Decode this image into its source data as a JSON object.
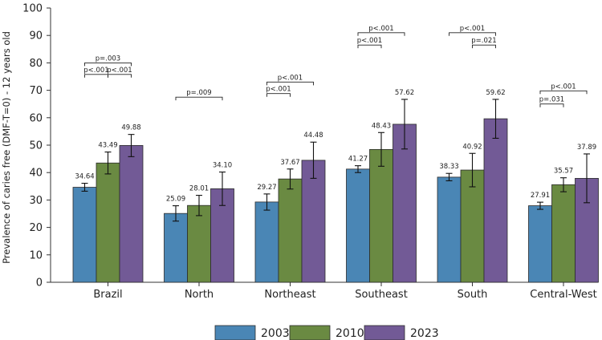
{
  "chart_data": {
    "type": "bar",
    "title": "",
    "xlabel": "",
    "ylabel": "Prevalence of caries free (DMF-T=0) - 12 years old",
    "ylim": [
      0,
      100
    ],
    "yticks": [
      0,
      10,
      20,
      30,
      40,
      50,
      60,
      70,
      80,
      90,
      100
    ],
    "categories": [
      "Brazil",
      "North",
      "Northeast",
      "Southeast",
      "South",
      "Central-West"
    ],
    "series": [
      {
        "name": "2003",
        "color": "#4a86b5",
        "values": [
          34.64,
          25.09,
          29.27,
          41.27,
          38.33,
          27.91
        ],
        "value_labels": [
          "34.64",
          "25.09",
          "29.27",
          "41.27",
          "38.33",
          "27.91"
        ],
        "ci_low": [
          33.2,
          22.3,
          26.3,
          40.0,
          37.0,
          26.6
        ],
        "ci_high": [
          36.1,
          27.9,
          32.2,
          42.5,
          39.7,
          29.2
        ]
      },
      {
        "name": "2010",
        "color": "#6a8a42",
        "values": [
          43.49,
          28.01,
          37.67,
          48.43,
          40.92,
          35.57
        ],
        "value_labels": [
          "43.49",
          "28.01",
          "37.67",
          "48.43",
          "40.92",
          "35.57"
        ],
        "ci_low": [
          39.5,
          24.3,
          34.0,
          42.3,
          34.8,
          33.0
        ],
        "ci_high": [
          47.5,
          31.7,
          41.3,
          54.6,
          47.0,
          38.1
        ]
      },
      {
        "name": "2023",
        "color": "#725a96",
        "values": [
          49.88,
          34.1,
          44.48,
          57.62,
          59.62,
          37.89
        ],
        "value_labels": [
          "49.88",
          "34.10",
          "44.48",
          "57.62",
          "59.62",
          "37.89"
        ],
        "ci_low": [
          45.8,
          28.0,
          37.9,
          48.6,
          52.5,
          29.0
        ],
        "ci_high": [
          53.9,
          40.2,
          51.1,
          66.7,
          66.7,
          46.8
        ]
      }
    ],
    "significance": [
      {
        "category": 0,
        "from": 0,
        "to": 2,
        "label": "p=.003",
        "level": 80
      },
      {
        "category": 0,
        "from": 0,
        "to": 1,
        "label": "p<.001",
        "level": 75.8
      },
      {
        "category": 0,
        "from": 1,
        "to": 2,
        "label": "p<.001",
        "level": 75.8
      },
      {
        "category": 1,
        "from": 0,
        "to": 2,
        "label": "p=.009",
        "level": 67.5
      },
      {
        "category": 2,
        "from": 0,
        "to": 2,
        "label": "p<.001",
        "level": 73.0
      },
      {
        "category": 2,
        "from": 0,
        "to": 1,
        "label": "p<.001",
        "level": 68.8
      },
      {
        "category": 3,
        "from": 0,
        "to": 2,
        "label": "p<.001",
        "level": 91.0
      },
      {
        "category": 3,
        "from": 0,
        "to": 1,
        "label": "p<.001",
        "level": 86.5
      },
      {
        "category": 4,
        "from": 0,
        "to": 2,
        "label": "p<.001",
        "level": 91.0
      },
      {
        "category": 4,
        "from": 1,
        "to": 2,
        "label": "p=.021",
        "level": 86.5
      },
      {
        "category": 5,
        "from": 0,
        "to": 2,
        "label": "p<.001",
        "level": 69.8
      },
      {
        "category": 5,
        "from": 0,
        "to": 1,
        "label": "p=.031",
        "level": 65.0
      }
    ],
    "legend": {
      "position": "bottom-center",
      "entries": [
        "2003",
        "2010",
        "2023"
      ]
    },
    "grid": false
  }
}
